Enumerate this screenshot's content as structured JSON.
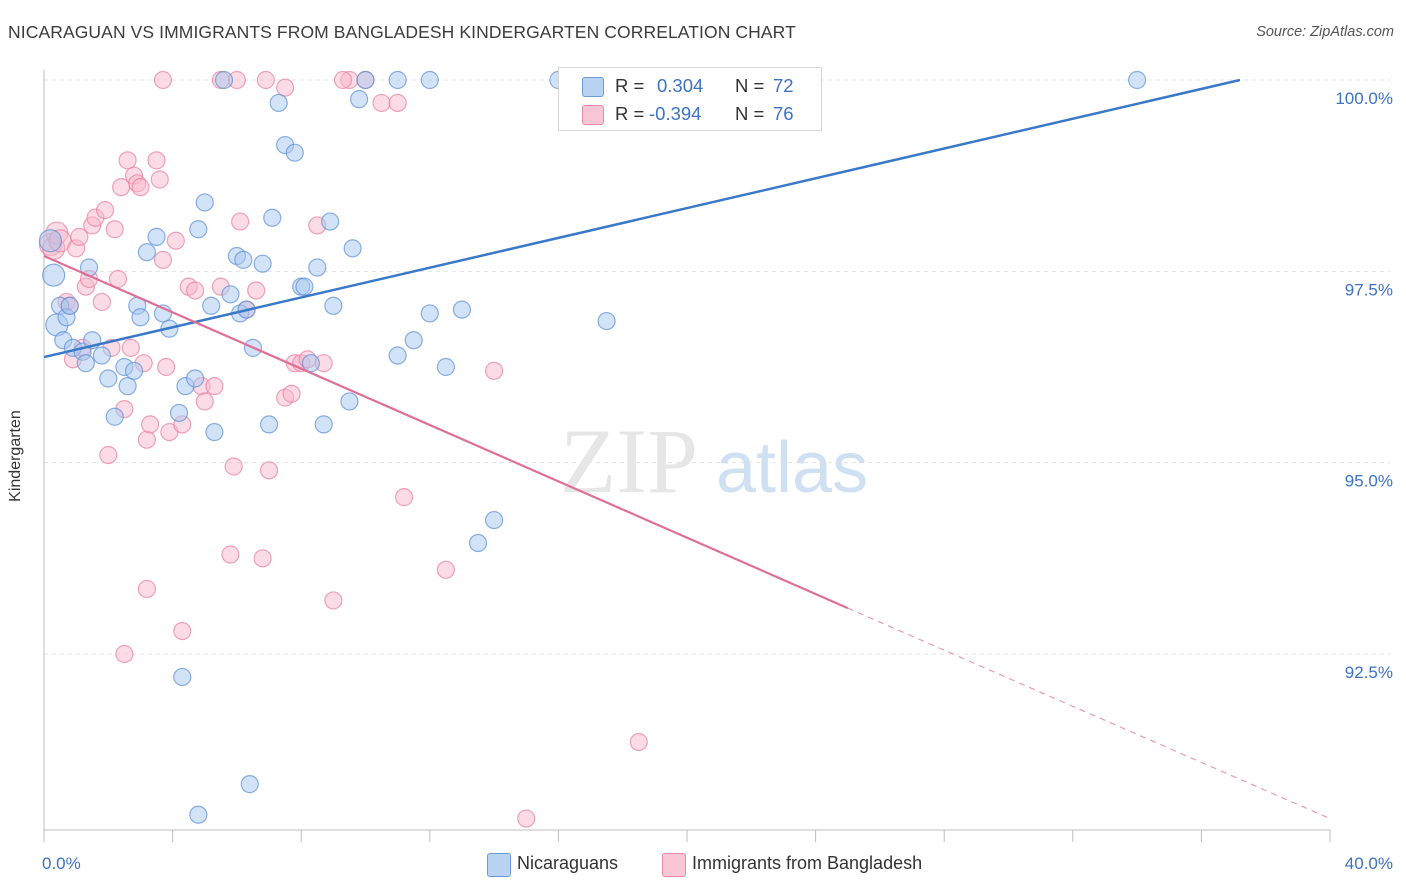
{
  "title": "NICARAGUAN VS IMMIGRANTS FROM BANGLADESH KINDERGARTEN CORRELATION CHART",
  "source": "Source: ZipAtlas.com",
  "watermark": {
    "zip": "ZIP",
    "atlas": "atlas"
  },
  "legend": {
    "rows": [
      {
        "r_label": "R =",
        "r_value": "0.304",
        "n_label": "N =",
        "n_value": "72"
      },
      {
        "r_label": "R =",
        "r_value": "-0.394",
        "n_label": "N =",
        "n_value": "76"
      }
    ]
  },
  "bottom_legend": [
    "Nicaraguans",
    "Immigrants from Bangladesh"
  ],
  "colors": {
    "blue_fill": "#a8c8f0",
    "blue_stroke": "#5b8fd6",
    "blue_line": "#3a78c8",
    "pink_fill": "#f7b8cc",
    "pink_stroke": "#e87fa0",
    "pink_line": "#e06f97",
    "axis_text": "#3d72c4",
    "grid": "#e3e3e3"
  },
  "chart_data": {
    "type": "scatter",
    "title": "NICARAGUAN VS IMMIGRANTS FROM BANGLADESH KINDERGARTEN CORRELATION CHART",
    "xlabel": "",
    "ylabel": "Kindergarten",
    "x_tick_labels": [
      "0.0%",
      "40.0%"
    ],
    "y_tick_labels": [
      "100.0%",
      "97.5%",
      "95.0%",
      "92.5%"
    ],
    "y_ticks": [
      100.0,
      97.5,
      95.0,
      92.5
    ],
    "xlim": [
      0,
      40
    ],
    "ylim": [
      90.2,
      100.2
    ],
    "grid": true,
    "legend_position": "top-center",
    "series": [
      {
        "name": "Nicaraguans",
        "r": 0.304,
        "n": 72,
        "trend": {
          "x": [
            0.0,
            37.2
          ],
          "y": [
            96.38,
            100.0
          ],
          "dashed_to": null
        },
        "points": [
          [
            0.2,
            97.9
          ],
          [
            0.3,
            97.45
          ],
          [
            0.4,
            96.8
          ],
          [
            0.5,
            97.05
          ],
          [
            0.6,
            96.6
          ],
          [
            0.7,
            96.9
          ],
          [
            0.8,
            97.05
          ],
          [
            0.9,
            96.5
          ],
          [
            1.2,
            96.45
          ],
          [
            1.3,
            96.3
          ],
          [
            1.4,
            97.55
          ],
          [
            1.5,
            96.6
          ],
          [
            1.8,
            96.4
          ],
          [
            2.0,
            96.1
          ],
          [
            2.2,
            95.6
          ],
          [
            2.5,
            96.25
          ],
          [
            2.6,
            96.0
          ],
          [
            2.8,
            96.2
          ],
          [
            2.9,
            97.05
          ],
          [
            3.0,
            96.9
          ],
          [
            3.2,
            97.75
          ],
          [
            3.5,
            97.95
          ],
          [
            3.7,
            96.95
          ],
          [
            3.9,
            96.75
          ],
          [
            4.2,
            95.65
          ],
          [
            4.4,
            96.0
          ],
          [
            4.7,
            96.1
          ],
          [
            4.8,
            98.05
          ],
          [
            5.0,
            98.4
          ],
          [
            5.2,
            97.05
          ],
          [
            5.3,
            95.4
          ],
          [
            5.6,
            100.0
          ],
          [
            5.8,
            97.2
          ],
          [
            6.0,
            97.7
          ],
          [
            6.1,
            96.95
          ],
          [
            6.2,
            97.65
          ],
          [
            6.3,
            97.0
          ],
          [
            6.5,
            96.5
          ],
          [
            6.8,
            97.6
          ],
          [
            7.0,
            95.5
          ],
          [
            7.1,
            98.2
          ],
          [
            7.3,
            99.7
          ],
          [
            7.5,
            99.15
          ],
          [
            7.8,
            99.05
          ],
          [
            8.0,
            97.3
          ],
          [
            8.1,
            97.3
          ],
          [
            8.3,
            96.3
          ],
          [
            8.5,
            97.55
          ],
          [
            8.7,
            95.5
          ],
          [
            8.9,
            98.15
          ],
          [
            9.0,
            97.05
          ],
          [
            9.5,
            95.8
          ],
          [
            9.6,
            97.8
          ],
          [
            9.8,
            99.75
          ],
          [
            10.0,
            100.0
          ],
          [
            11.0,
            100.0
          ],
          [
            11.0,
            96.4
          ],
          [
            11.5,
            96.6
          ],
          [
            12.0,
            96.95
          ],
          [
            12.0,
            100.0
          ],
          [
            12.5,
            96.25
          ],
          [
            13.0,
            97.0
          ],
          [
            13.5,
            93.95
          ],
          [
            14.0,
            94.25
          ],
          [
            16.0,
            100.0
          ],
          [
            17.5,
            96.85
          ],
          [
            18.0,
            100.0
          ],
          [
            21.0,
            100.0
          ],
          [
            34.0,
            100.0
          ],
          [
            4.3,
            92.2
          ],
          [
            6.4,
            90.8
          ],
          [
            4.8,
            90.4
          ]
        ]
      },
      {
        "name": "Immigrants from Bangladesh",
        "r": -0.394,
        "n": 76,
        "trend": {
          "x": [
            0.0,
            25.0
          ],
          "y": [
            97.7,
            93.1
          ],
          "dashed_to": {
            "x": 40.0,
            "y": 90.35
          }
        },
        "points": [
          [
            0.2,
            97.85
          ],
          [
            0.3,
            97.8
          ],
          [
            0.4,
            98.0
          ],
          [
            0.5,
            97.9
          ],
          [
            0.7,
            97.1
          ],
          [
            0.8,
            97.05
          ],
          [
            0.9,
            96.35
          ],
          [
            1.0,
            97.8
          ],
          [
            1.1,
            97.95
          ],
          [
            1.2,
            96.5
          ],
          [
            1.3,
            97.3
          ],
          [
            1.4,
            97.4
          ],
          [
            1.5,
            98.1
          ],
          [
            1.6,
            98.2
          ],
          [
            1.8,
            97.1
          ],
          [
            1.9,
            98.3
          ],
          [
            2.0,
            95.1
          ],
          [
            2.1,
            96.5
          ],
          [
            2.2,
            98.05
          ],
          [
            2.3,
            97.4
          ],
          [
            2.4,
            98.6
          ],
          [
            2.5,
            95.7
          ],
          [
            2.6,
            98.95
          ],
          [
            2.7,
            96.5
          ],
          [
            2.8,
            98.75
          ],
          [
            2.9,
            98.65
          ],
          [
            3.0,
            98.6
          ],
          [
            3.1,
            96.3
          ],
          [
            3.2,
            95.3
          ],
          [
            3.3,
            95.5
          ],
          [
            3.5,
            98.95
          ],
          [
            3.6,
            98.7
          ],
          [
            3.7,
            97.65
          ],
          [
            3.8,
            96.25
          ],
          [
            3.9,
            95.4
          ],
          [
            4.1,
            97.9
          ],
          [
            4.3,
            95.5
          ],
          [
            4.5,
            97.3
          ],
          [
            4.7,
            97.25
          ],
          [
            4.9,
            96.0
          ],
          [
            5.0,
            95.8
          ],
          [
            5.3,
            96.0
          ],
          [
            5.5,
            97.3
          ],
          [
            5.8,
            93.8
          ],
          [
            5.9,
            94.95
          ],
          [
            6.1,
            98.15
          ],
          [
            6.3,
            97.0
          ],
          [
            6.6,
            97.25
          ],
          [
            6.8,
            93.75
          ],
          [
            7.0,
            94.9
          ],
          [
            7.5,
            95.85
          ],
          [
            7.7,
            95.9
          ],
          [
            7.8,
            96.3
          ],
          [
            8.0,
            96.3
          ],
          [
            8.2,
            96.35
          ],
          [
            8.5,
            98.1
          ],
          [
            9.0,
            93.2
          ],
          [
            9.5,
            100.0
          ],
          [
            10.0,
            100.0
          ],
          [
            10.5,
            99.7
          ],
          [
            11.2,
            94.55
          ],
          [
            12.5,
            93.6
          ],
          [
            3.2,
            93.35
          ],
          [
            4.3,
            92.8
          ],
          [
            2.5,
            92.5
          ],
          [
            14.0,
            96.2
          ],
          [
            18.5,
            91.35
          ],
          [
            15.0,
            90.35
          ],
          [
            3.7,
            100.0
          ],
          [
            6.0,
            100.0
          ],
          [
            6.9,
            100.0
          ],
          [
            7.5,
            99.9
          ],
          [
            9.3,
            100.0
          ],
          [
            11.0,
            99.7
          ],
          [
            5.5,
            100.0
          ],
          [
            8.7,
            96.3
          ]
        ]
      }
    ]
  }
}
